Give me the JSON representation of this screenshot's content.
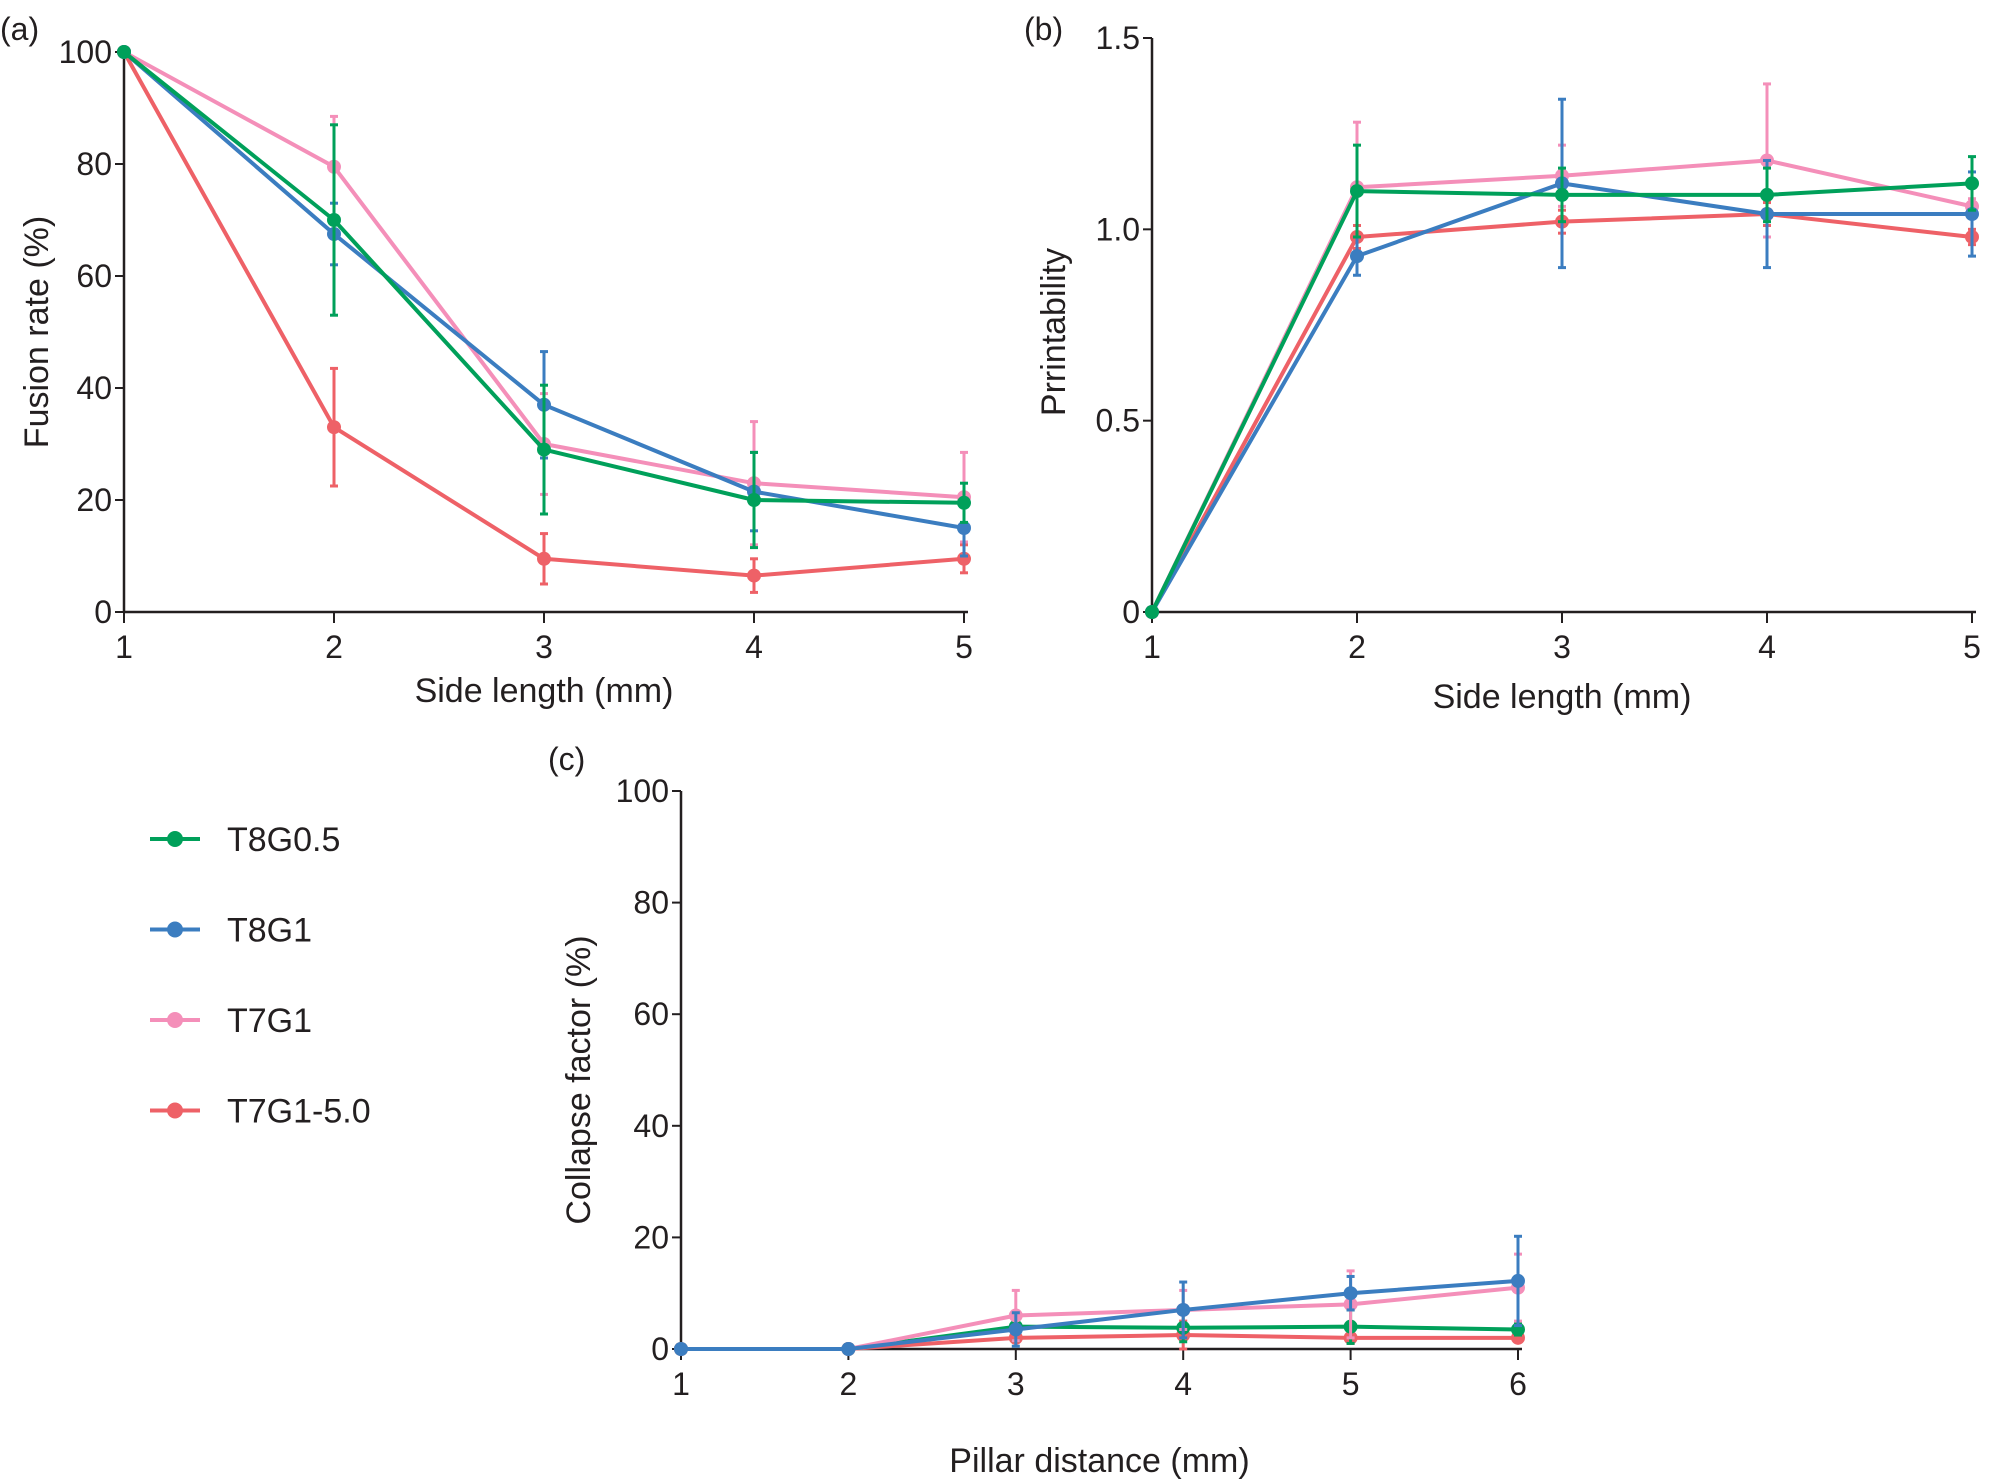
{
  "legend": [
    {
      "name": "T8G0.5",
      "color": "#00a05a"
    },
    {
      "name": "T8G1",
      "color": "#3b7dc0"
    },
    {
      "name": "T7G1",
      "color": "#f48fb9"
    },
    {
      "name": "T7G1-5.0",
      "color": "#ee6167"
    }
  ],
  "chart_data": [
    {
      "type": "line",
      "panel": "(a)",
      "xlabel": "Side length (mm)",
      "ylabel": "Fusion rate (%)",
      "x": [
        1,
        2,
        3,
        4,
        5
      ],
      "xticks": [
        "1",
        "2",
        "3",
        "4",
        "5"
      ],
      "yticks": [
        "0",
        "20",
        "40",
        "60",
        "80",
        "100"
      ],
      "ylim": [
        0,
        100
      ],
      "xlim": [
        1,
        5
      ],
      "grid": false,
      "series": [
        {
          "name": "T7G1-5.0",
          "values": [
            100,
            33,
            9.5,
            6.5,
            9.5
          ],
          "error": [
            0,
            10.5,
            4.5,
            3,
            2.5
          ]
        },
        {
          "name": "T7G1",
          "values": [
            100,
            79.5,
            30,
            23,
            20.5
          ],
          "error": [
            0,
            9,
            9,
            11,
            8
          ]
        },
        {
          "name": "T8G1",
          "values": [
            100,
            67.5,
            37,
            21.5,
            15
          ],
          "error": [
            0,
            5.5,
            9.5,
            7,
            5
          ]
        },
        {
          "name": "T8G0.5",
          "values": [
            100,
            70,
            29,
            20,
            19.5
          ],
          "error": [
            0,
            17,
            11.5,
            8.5,
            3.5
          ]
        }
      ]
    },
    {
      "type": "line",
      "panel": "(b)",
      "xlabel": "Side length (mm)",
      "ylabel": "Prrintability",
      "x": [
        1,
        2,
        3,
        4,
        5
      ],
      "xticks": [
        "1",
        "2",
        "3",
        "4",
        "5"
      ],
      "yticks": [
        "0",
        "0.5",
        "1.0",
        "1.5"
      ],
      "ylim": [
        0,
        1.5
      ],
      "xlim": [
        1,
        5
      ],
      "grid": false,
      "series": [
        {
          "name": "T7G1-5.0",
          "values": [
            0,
            0.98,
            1.02,
            1.04,
            0.98
          ],
          "error": [
            0,
            0.03,
            0.03,
            0.03,
            0.02
          ]
        },
        {
          "name": "T7G1",
          "values": [
            0,
            1.11,
            1.14,
            1.18,
            1.06
          ],
          "error": [
            0,
            0.17,
            0.08,
            0.2,
            0.02
          ]
        },
        {
          "name": "T8G1",
          "values": [
            0,
            0.93,
            1.12,
            1.04,
            1.04
          ],
          "error": [
            0,
            0.05,
            0.22,
            0.14,
            0.11
          ]
        },
        {
          "name": "T8G0.5",
          "values": [
            0,
            1.1,
            1.09,
            1.09,
            1.12
          ],
          "error": [
            0,
            0.12,
            0.07,
            0.07,
            0.07
          ]
        }
      ]
    },
    {
      "type": "line",
      "panel": "(c)",
      "xlabel": "Pillar distance (mm)",
      "ylabel": "Collapse factor (%)",
      "x": [
        1,
        2,
        3,
        4,
        5,
        6
      ],
      "xticks": [
        "1",
        "2",
        "3",
        "4",
        "5",
        "6"
      ],
      "yticks": [
        "0",
        "20",
        "40",
        "60",
        "80",
        "100"
      ],
      "ylim": [
        0,
        100
      ],
      "xlim": [
        1,
        6
      ],
      "grid": false,
      "series": [
        {
          "name": "T7G1-5.0",
          "values": [
            0,
            0,
            2,
            2.5,
            2,
            2
          ],
          "error": [
            0,
            0,
            0.5,
            2.5,
            1,
            0.5
          ]
        },
        {
          "name": "T8G0.5",
          "values": [
            0,
            0,
            4,
            3.8,
            4,
            3.5
          ],
          "error": [
            0,
            0,
            2.5,
            2.5,
            3,
            1
          ]
        },
        {
          "name": "T7G1",
          "values": [
            0,
            0,
            6,
            7,
            8,
            11
          ],
          "error": [
            0,
            0,
            4.5,
            3.5,
            6,
            6
          ]
        },
        {
          "name": "T8G1",
          "values": [
            0,
            0,
            3.5,
            7,
            10,
            12.2
          ],
          "error": [
            0,
            0,
            3,
            5,
            3,
            8
          ]
        }
      ]
    }
  ]
}
